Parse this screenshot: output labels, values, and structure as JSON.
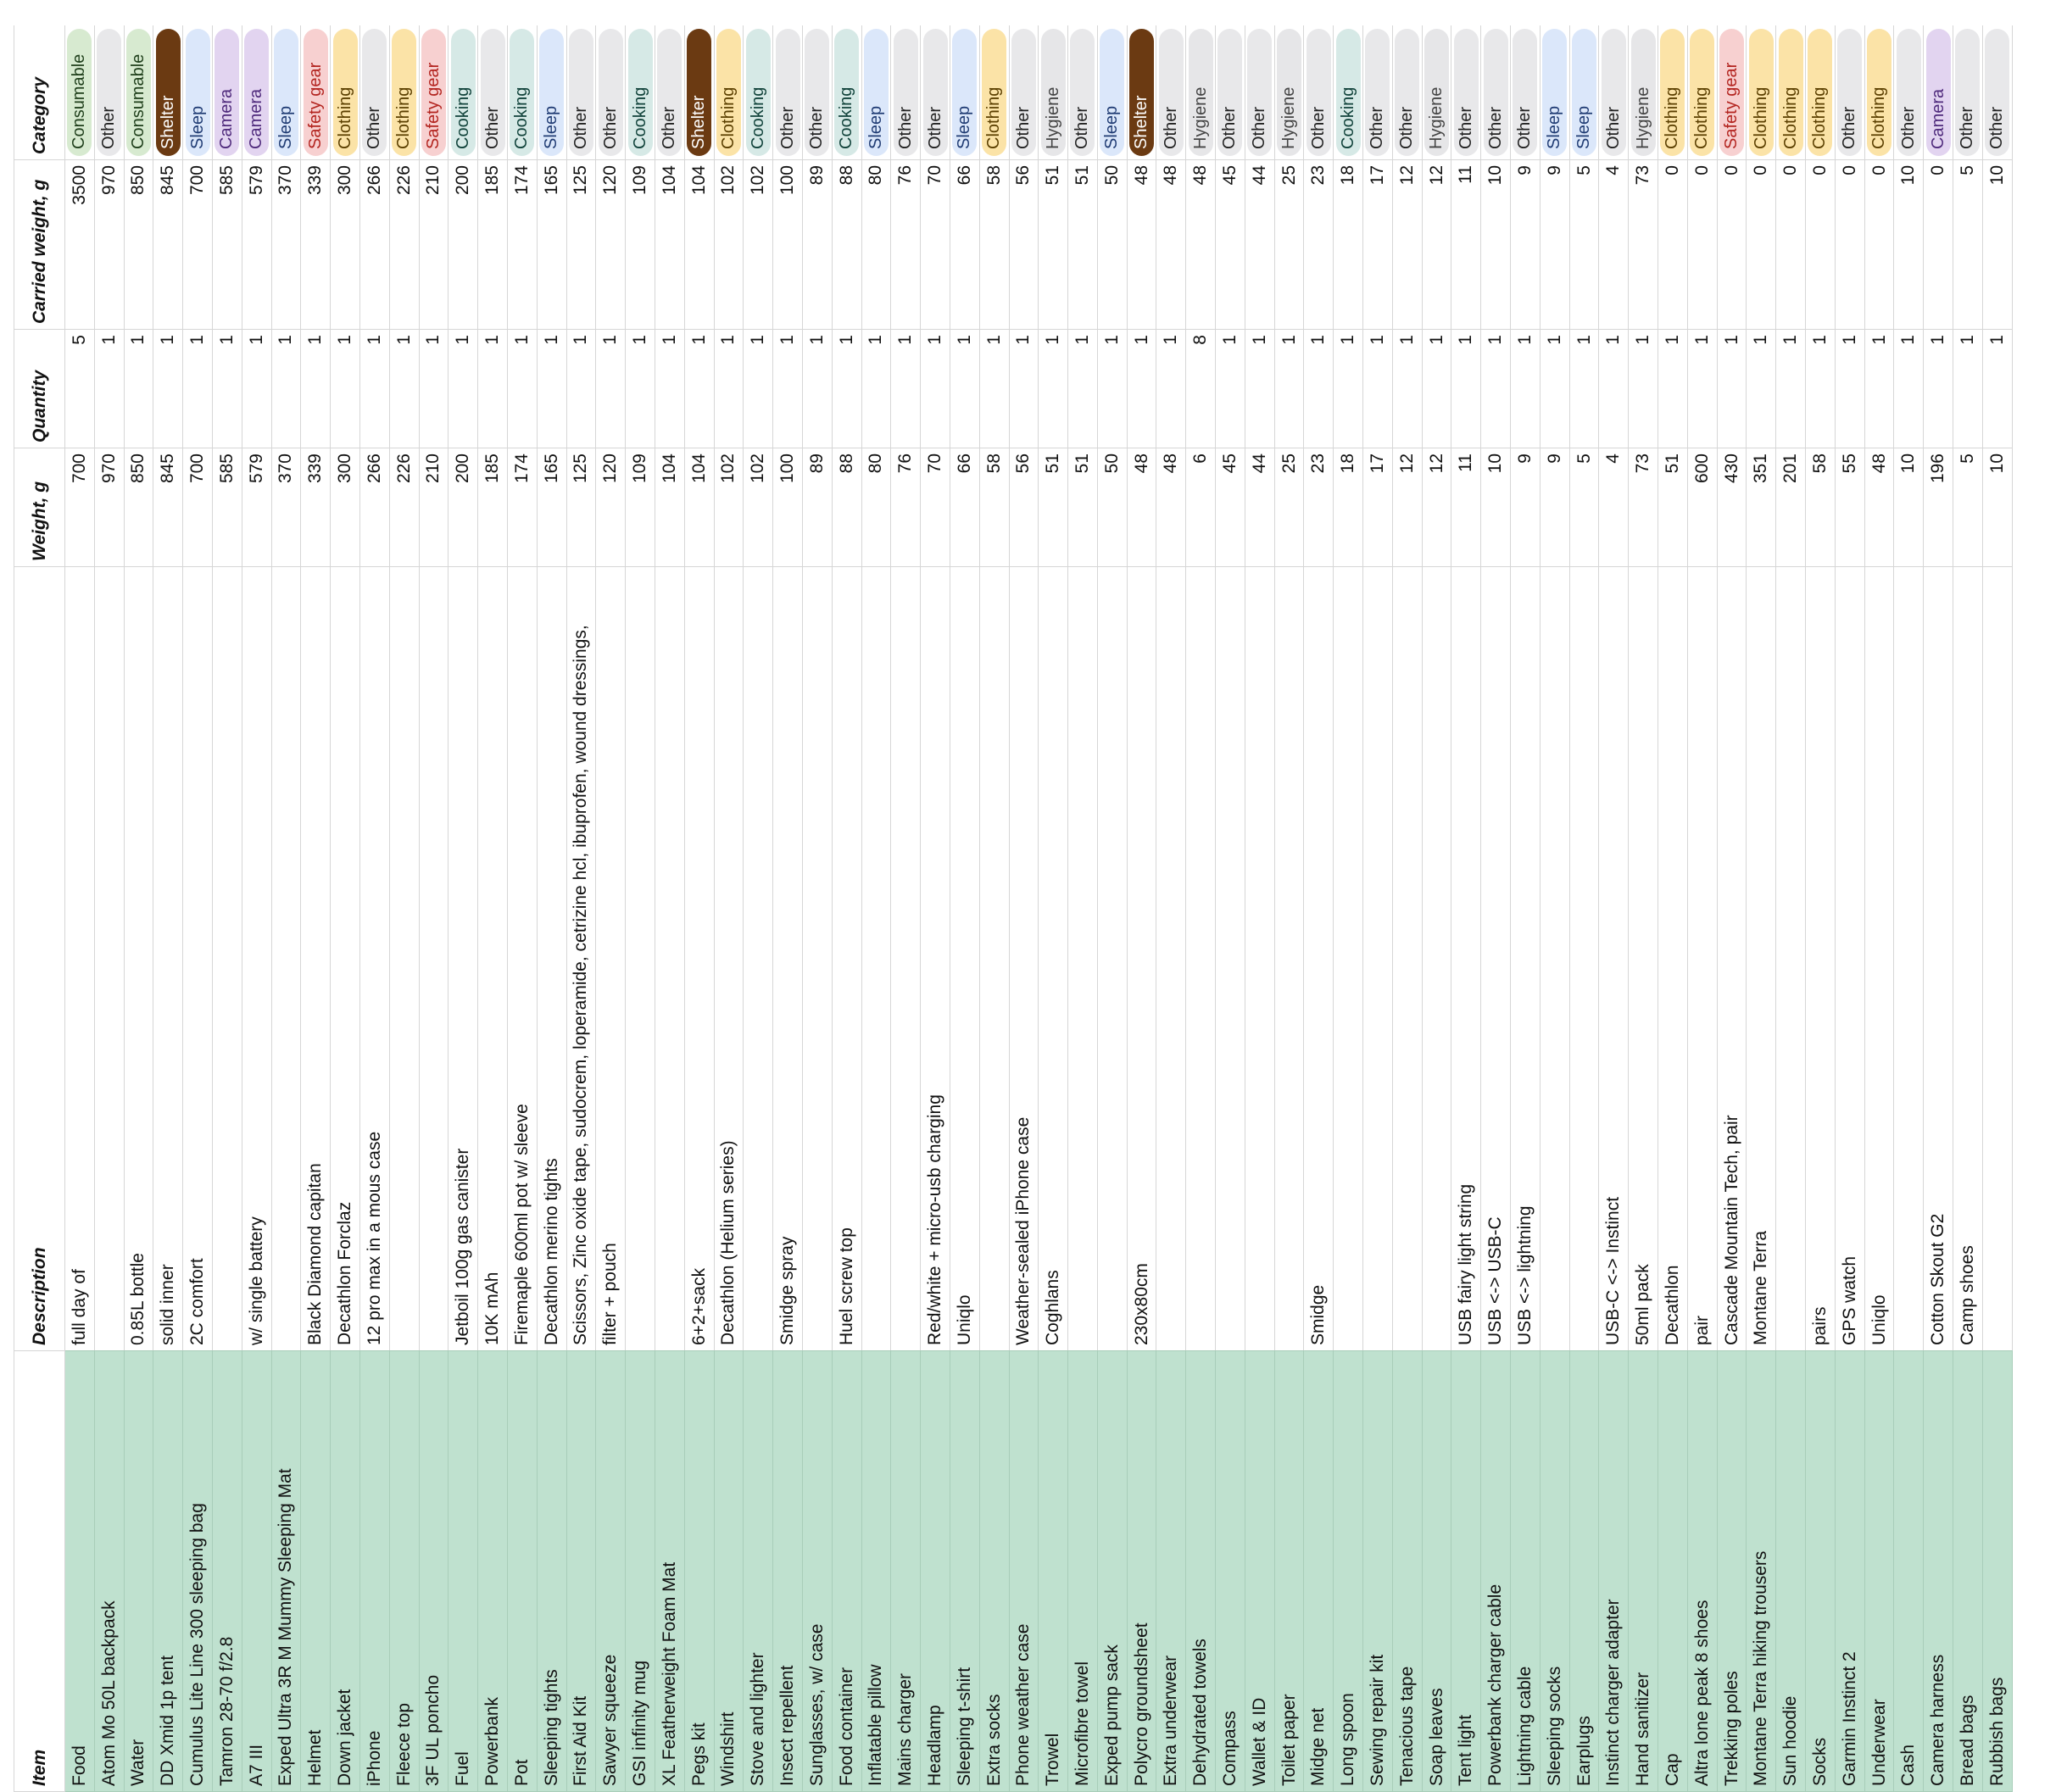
{
  "headers": {
    "item": "Item",
    "description": "Description",
    "weight": "Weight, g",
    "quantity": "Quantity",
    "carried_weight": "Carried weight, g",
    "category": "Category"
  },
  "category_colors": {
    "Consumable": "#d7ead0",
    "Other": "#e8e8ea",
    "Shelter": "#6b3a12",
    "Sleep": "#dbe7fa",
    "Camera": "#e2d4f0",
    "Safety gear": "#f7d0d0",
    "Clothing": "#fbe3a7",
    "Cooking": "#d6e9e6",
    "Hygiene": "#e6e6e8",
    "item_column": "#bfe1cf"
  },
  "rows": [
    {
      "item": "Food",
      "description": "full day of",
      "weight": "700",
      "quantity": "5",
      "carried": "3500",
      "category": "Consumable"
    },
    {
      "item": "Atom Mo 50L backpack",
      "description": "",
      "weight": "970",
      "quantity": "1",
      "carried": "970",
      "category": "Other"
    },
    {
      "item": "Water",
      "description": "0.85L bottle",
      "weight": "850",
      "quantity": "1",
      "carried": "850",
      "category": "Consumable"
    },
    {
      "item": "DD Xmid 1p tent",
      "description": "solid inner",
      "weight": "845",
      "quantity": "1",
      "carried": "845",
      "category": "Shelter"
    },
    {
      "item": "Cumulus Lite Line 300 sleeping bag",
      "description": "2C comfort",
      "weight": "700",
      "quantity": "1",
      "carried": "700",
      "category": "Sleep"
    },
    {
      "item": "Tamron 28-70 f/2.8",
      "description": "",
      "weight": "585",
      "quantity": "1",
      "carried": "585",
      "category": "Camera"
    },
    {
      "item": "A7 III",
      "description": "w/ single battery",
      "weight": "579",
      "quantity": "1",
      "carried": "579",
      "category": "Camera"
    },
    {
      "item": "Exped Ultra 3R M Mummy Sleeping Mat",
      "description": "",
      "weight": "370",
      "quantity": "1",
      "carried": "370",
      "category": "Sleep"
    },
    {
      "item": "Helmet",
      "description": "Black Diamond capitan",
      "weight": "339",
      "quantity": "1",
      "carried": "339",
      "category": "Safety gear"
    },
    {
      "item": "Down jacket",
      "description": "Decathlon Forclaz",
      "weight": "300",
      "quantity": "1",
      "carried": "300",
      "category": "Clothing"
    },
    {
      "item": "iPhone",
      "description": "12 pro max in a mous case",
      "weight": "266",
      "quantity": "1",
      "carried": "266",
      "category": "Other"
    },
    {
      "item": "Fleece top",
      "description": "",
      "weight": "226",
      "quantity": "1",
      "carried": "226",
      "category": "Clothing"
    },
    {
      "item": "3F UL poncho",
      "description": "",
      "weight": "210",
      "quantity": "1",
      "carried": "210",
      "category": "Safety gear"
    },
    {
      "item": "Fuel",
      "description": "Jetboil 100g gas canister",
      "weight": "200",
      "quantity": "1",
      "carried": "200",
      "category": "Cooking"
    },
    {
      "item": "Powerbank",
      "description": "10K mAh",
      "weight": "185",
      "quantity": "1",
      "carried": "185",
      "category": "Other"
    },
    {
      "item": "Pot",
      "description": "Firemaple 600ml pot w/ sleeve",
      "weight": "174",
      "quantity": "1",
      "carried": "174",
      "category": "Cooking"
    },
    {
      "item": "Sleeping tights",
      "description": "Decathlon merino tights",
      "weight": "165",
      "quantity": "1",
      "carried": "165",
      "category": "Sleep"
    },
    {
      "item": "First Aid Kit",
      "description": "Scissors, Zinc oxide tape, sudocrem, loperamide, cetrizine hcl, ibuprofen, wound dressings,",
      "weight": "125",
      "quantity": "1",
      "carried": "125",
      "category": "Other"
    },
    {
      "item": "Sawyer squeeze",
      "description": "filter + pouch",
      "weight": "120",
      "quantity": "1",
      "carried": "120",
      "category": "Other"
    },
    {
      "item": "GSI infinity mug",
      "description": "",
      "weight": "109",
      "quantity": "1",
      "carried": "109",
      "category": "Cooking"
    },
    {
      "item": "XL Featherweight Foam Mat",
      "description": "",
      "weight": "104",
      "quantity": "1",
      "carried": "104",
      "category": "Other"
    },
    {
      "item": "Pegs kit",
      "description": "6+2+sack",
      "weight": "104",
      "quantity": "1",
      "carried": "104",
      "category": "Shelter"
    },
    {
      "item": "Windshirt",
      "description": "Decathlon (Helium series)",
      "weight": "102",
      "quantity": "1",
      "carried": "102",
      "category": "Clothing"
    },
    {
      "item": "Stove and lighter",
      "description": "",
      "weight": "102",
      "quantity": "1",
      "carried": "102",
      "category": "Cooking"
    },
    {
      "item": "Insect repellent",
      "description": "Smidge spray",
      "weight": "100",
      "quantity": "1",
      "carried": "100",
      "category": "Other"
    },
    {
      "item": "Sunglasses, w/ case",
      "description": "",
      "weight": "89",
      "quantity": "1",
      "carried": "89",
      "category": "Other"
    },
    {
      "item": "Food container",
      "description": "Huel screw top",
      "weight": "88",
      "quantity": "1",
      "carried": "88",
      "category": "Cooking"
    },
    {
      "item": "Inflatable pillow",
      "description": "",
      "weight": "80",
      "quantity": "1",
      "carried": "80",
      "category": "Sleep"
    },
    {
      "item": "Mains charger",
      "description": "",
      "weight": "76",
      "quantity": "1",
      "carried": "76",
      "category": "Other"
    },
    {
      "item": "Headlamp",
      "description": "Red/white + micro-usb charging",
      "weight": "70",
      "quantity": "1",
      "carried": "70",
      "category": "Other"
    },
    {
      "item": "Sleeping t-shirt",
      "description": "Uniqlo",
      "weight": "66",
      "quantity": "1",
      "carried": "66",
      "category": "Sleep"
    },
    {
      "item": "Extra socks",
      "description": "",
      "weight": "58",
      "quantity": "1",
      "carried": "58",
      "category": "Clothing"
    },
    {
      "item": "Phone weather case",
      "description": "Weather-sealed iPhone case",
      "weight": "56",
      "quantity": "1",
      "carried": "56",
      "category": "Other"
    },
    {
      "item": "Trowel",
      "description": "Coghlans",
      "weight": "51",
      "quantity": "1",
      "carried": "51",
      "category": "Hygiene"
    },
    {
      "item": "Microfibre towel",
      "description": "",
      "weight": "51",
      "quantity": "1",
      "carried": "51",
      "category": "Other"
    },
    {
      "item": "Exped pump sack",
      "description": "",
      "weight": "50",
      "quantity": "1",
      "carried": "50",
      "category": "Sleep"
    },
    {
      "item": "Polycro groundsheet",
      "description": "230x80cm",
      "weight": "48",
      "quantity": "1",
      "carried": "48",
      "category": "Shelter"
    },
    {
      "item": "Extra underwear",
      "description": "",
      "weight": "48",
      "quantity": "1",
      "carried": "48",
      "category": "Other"
    },
    {
      "item": "Dehydrated towels",
      "description": "",
      "weight": "6",
      "quantity": "8",
      "carried": "48",
      "category": "Hygiene"
    },
    {
      "item": "Compass",
      "description": "",
      "weight": "45",
      "quantity": "1",
      "carried": "45",
      "category": "Other"
    },
    {
      "item": "Wallet & ID",
      "description": "",
      "weight": "44",
      "quantity": "1",
      "carried": "44",
      "category": "Other"
    },
    {
      "item": "Toilet paper",
      "description": "",
      "weight": "25",
      "quantity": "1",
      "carried": "25",
      "category": "Hygiene"
    },
    {
      "item": "Midge net",
      "description": "Smidge",
      "weight": "23",
      "quantity": "1",
      "carried": "23",
      "category": "Other"
    },
    {
      "item": "Long spoon",
      "description": "",
      "weight": "18",
      "quantity": "1",
      "carried": "18",
      "category": "Cooking"
    },
    {
      "item": "Sewing repair kit",
      "description": "",
      "weight": "17",
      "quantity": "1",
      "carried": "17",
      "category": "Other"
    },
    {
      "item": "Tenacious tape",
      "description": "",
      "weight": "12",
      "quantity": "1",
      "carried": "12",
      "category": "Other"
    },
    {
      "item": "Soap leaves",
      "description": "",
      "weight": "12",
      "quantity": "1",
      "carried": "12",
      "category": "Hygiene"
    },
    {
      "item": "Tent light",
      "description": "USB fairy light string",
      "weight": "11",
      "quantity": "1",
      "carried": "11",
      "category": "Other"
    },
    {
      "item": "Powerbank charger cable",
      "description": "USB <-> USB-C",
      "weight": "10",
      "quantity": "1",
      "carried": "10",
      "category": "Other"
    },
    {
      "item": "Lightning cable",
      "description": "USB <-> lightning",
      "weight": "9",
      "quantity": "1",
      "carried": "9",
      "category": "Other"
    },
    {
      "item": "Sleeping socks",
      "description": "",
      "weight": "9",
      "quantity": "1",
      "carried": "9",
      "category": "Sleep"
    },
    {
      "item": "Earplugs",
      "description": "",
      "weight": "5",
      "quantity": "1",
      "carried": "5",
      "category": "Sleep"
    },
    {
      "item": "Instinct charger adapter",
      "description": "USB-C <-> Instinct",
      "weight": "4",
      "quantity": "1",
      "carried": "4",
      "category": "Other"
    },
    {
      "item": "Hand sanitizer",
      "description": "50ml pack",
      "weight": "73",
      "quantity": "1",
      "carried": "73",
      "category": "Hygiene"
    },
    {
      "item": "Cap",
      "description": "Decathlon",
      "weight": "51",
      "quantity": "1",
      "carried": "0",
      "category": "Clothing"
    },
    {
      "item": "Altra lone peak 8 shoes",
      "description": "pair",
      "weight": "600",
      "quantity": "1",
      "carried": "0",
      "category": "Clothing"
    },
    {
      "item": "Trekking poles",
      "description": "Cascade Mountain Tech, pair",
      "weight": "430",
      "quantity": "1",
      "carried": "0",
      "category": "Safety gear"
    },
    {
      "item": "Montane Terra hiking trousers",
      "description": "Montane Terra",
      "weight": "351",
      "quantity": "1",
      "carried": "0",
      "category": "Clothing"
    },
    {
      "item": "Sun hoodie",
      "description": "",
      "weight": "201",
      "quantity": "1",
      "carried": "0",
      "category": "Clothing"
    },
    {
      "item": "Socks",
      "description": "pairs",
      "weight": "58",
      "quantity": "1",
      "carried": "0",
      "category": "Clothing"
    },
    {
      "item": "Garmin Instinct 2",
      "description": "GPS watch",
      "weight": "55",
      "quantity": "1",
      "carried": "0",
      "category": "Other"
    },
    {
      "item": "Underwear",
      "description": "Uniqlo",
      "weight": "48",
      "quantity": "1",
      "carried": "0",
      "category": "Clothing"
    },
    {
      "item": "Cash",
      "description": "",
      "weight": "10",
      "quantity": "1",
      "carried": "10",
      "category": "Other"
    },
    {
      "item": "Camera harness",
      "description": "Cotton Skout G2",
      "weight": "196",
      "quantity": "1",
      "carried": "0",
      "category": "Camera"
    },
    {
      "item": "Bread bags",
      "description": "Camp shoes",
      "weight": "5",
      "quantity": "1",
      "carried": "5",
      "category": "Other"
    },
    {
      "item": "Rubbish bags",
      "description": "",
      "weight": "10",
      "quantity": "1",
      "carried": "10",
      "category": "Other"
    }
  ]
}
